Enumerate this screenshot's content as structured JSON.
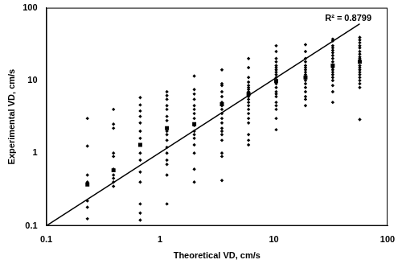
{
  "chart_data": {
    "type": "scatter",
    "x_label": "Theoretical VD, cm/s",
    "y_label": "Experimental VD, cm/s",
    "annotations": [
      "R² = 0.8799"
    ],
    "log": true,
    "grid": false,
    "xlim": [
      0.1,
      100
    ],
    "ylim": [
      0.1,
      100
    ],
    "xticks": [
      0.1,
      1,
      10,
      100
    ],
    "yticks": [
      0.1,
      1,
      10,
      100
    ],
    "series": [
      {
        "type": "scatter",
        "marker": "diamond",
        "color": "#000000",
        "x": [
          0.23,
          0.23,
          0.23,
          0.23,
          0.23,
          0.23,
          0.23,
          0.39,
          0.39,
          0.39,
          0.39,
          0.39,
          0.39,
          0.39,
          0.39,
          0.39,
          0.39,
          0.67,
          0.67,
          0.67,
          0.67,
          0.67,
          0.67,
          0.67,
          0.67,
          0.67,
          0.67,
          0.67,
          0.67,
          0.67,
          0.67,
          1.15,
          1.15,
          1.15,
          1.15,
          1.15,
          1.15,
          1.15,
          1.15,
          1.15,
          1.15,
          1.15,
          1.15,
          1.15,
          1.15,
          1.15,
          1.15,
          2.0,
          2.0,
          2.0,
          2.0,
          2.0,
          2.0,
          2.0,
          2.0,
          2.0,
          2.0,
          2.0,
          2.0,
          2.0,
          2.0,
          2.0,
          2.0,
          3.5,
          3.5,
          3.5,
          3.5,
          3.5,
          3.5,
          3.5,
          3.5,
          3.5,
          3.5,
          3.5,
          3.5,
          3.5,
          3.5,
          3.5,
          3.5,
          3.5,
          3.5,
          6.0,
          6.0,
          6.0,
          6.0,
          6.0,
          6.0,
          6.0,
          6.0,
          6.0,
          6.0,
          6.0,
          6.0,
          6.0,
          6.0,
          6.0,
          6.0,
          6.0,
          6.0,
          6.0,
          6.0,
          10.5,
          10.5,
          10.5,
          10.5,
          10.5,
          10.5,
          10.5,
          10.5,
          10.5,
          10.5,
          10.5,
          10.5,
          10.5,
          10.5,
          10.5,
          10.5,
          10.5,
          10.5,
          10.5,
          10.5,
          10.5,
          19,
          19,
          19,
          19,
          19,
          19,
          19,
          19,
          19,
          19,
          19,
          19,
          19,
          19,
          19,
          19,
          19,
          33,
          33,
          33,
          33,
          33,
          33,
          33,
          33,
          33,
          33,
          33,
          33,
          33,
          33,
          33,
          33,
          33,
          33,
          33,
          57,
          57,
          57,
          57,
          57,
          57,
          57,
          57,
          57,
          57,
          57,
          57,
          57,
          57,
          57,
          57,
          57,
          57,
          57,
          57,
          57
        ],
        "values": [
          3.0,
          1.25,
          0.5,
          0.4,
          0.22,
          0.18,
          0.125,
          4.0,
          2.5,
          2.2,
          1.0,
          0.9,
          0.6,
          0.5,
          0.45,
          0.4,
          0.35,
          5.8,
          4.6,
          3.8,
          3.2,
          2.6,
          2.0,
          1.6,
          1.0,
          0.8,
          0.55,
          0.4,
          0.2,
          0.15,
          0.12,
          7.0,
          6.2,
          5.5,
          4.5,
          4.0,
          3.2,
          2.8,
          2.0,
          1.8,
          1.5,
          1.2,
          1.0,
          0.8,
          0.7,
          0.5,
          0.2,
          11.5,
          7.5,
          6.5,
          5.5,
          4.5,
          4.0,
          3.5,
          3.0,
          2.4,
          2.0,
          1.8,
          1.6,
          1.3,
          1.0,
          0.6,
          0.4,
          14,
          9,
          8.5,
          7,
          6,
          5,
          4.5,
          4,
          3.5,
          3,
          2.6,
          2.2,
          2.0,
          1.8,
          1.5,
          1.0,
          0.9,
          0.42,
          20,
          15,
          11,
          9.5,
          8.5,
          8,
          7.5,
          7,
          6.5,
          6,
          5.5,
          5,
          4.5,
          4,
          3.5,
          3,
          2.6,
          1.8,
          1.5,
          1.3,
          30,
          25,
          20,
          18,
          16,
          15,
          14,
          13,
          12,
          11,
          10,
          9,
          8,
          7,
          6.5,
          6,
          5,
          4.5,
          4,
          3,
          2.1,
          31,
          25,
          20,
          18,
          16,
          15,
          14,
          13,
          12,
          11,
          10,
          9,
          8,
          7,
          6,
          5.5,
          4.5,
          37,
          35,
          30,
          28,
          26,
          24,
          22,
          20,
          18,
          16,
          15,
          14,
          13,
          12,
          11,
          10,
          8.5,
          7,
          5,
          39,
          36,
          33,
          30,
          28,
          25,
          23,
          21,
          20,
          19,
          18,
          16,
          15,
          14,
          13,
          12,
          11,
          10,
          9,
          8,
          2.9
        ]
      },
      {
        "type": "scatter",
        "marker": "square",
        "color": "#000000",
        "x": [
          0.23,
          0.39,
          0.67,
          1.15,
          2.0,
          3.5,
          6.0,
          10.5,
          19,
          33,
          57
        ],
        "values": [
          0.37,
          0.58,
          1.3,
          2.2,
          2.5,
          4.7,
          6.5,
          9.8,
          11,
          16,
          18
        ]
      },
      {
        "type": "line",
        "line_style": "solid",
        "color": "#000000",
        "x": [
          0.1,
          57
        ],
        "values": [
          0.1,
          60
        ]
      }
    ]
  }
}
